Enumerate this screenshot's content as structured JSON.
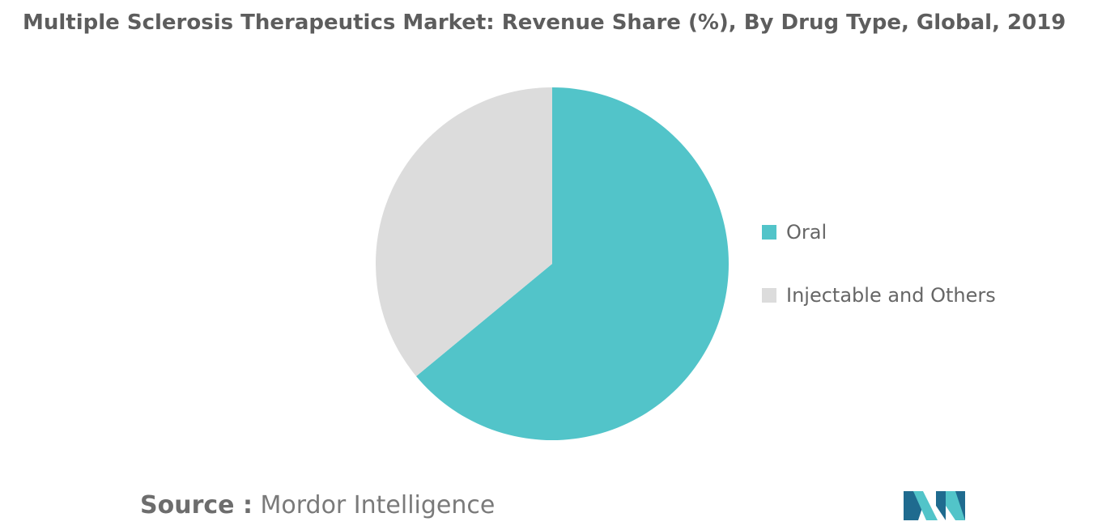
{
  "colors": {
    "oral": "#52c4c9",
    "injectable": "#dcdcdc",
    "title": "#5d5d5d",
    "logo_dark": "#1f6b8f",
    "logo_light": "#52c4c9"
  },
  "chart_data": {
    "type": "pie",
    "title": "Multiple Sclerosis Therapeutics Market: Revenue Share (%), By Drug Type, Global, 2019",
    "categories": [
      "Oral",
      "Injectable and Others"
    ],
    "values": [
      64,
      36
    ],
    "colors": [
      "#52c4c9",
      "#dcdcdc"
    ],
    "legend_placement": "right",
    "start_angle_deg": 0,
    "direction": "clockwise"
  },
  "legend": {
    "items": [
      {
        "label": "Oral",
        "color": "#52c4c9"
      },
      {
        "label": "Injectable and Others",
        "color": "#dcdcdc"
      }
    ]
  },
  "source": {
    "key": "Source :",
    "value": " Mordor Intelligence"
  },
  "logo": {
    "icon": "mordor-intelligence-logo-icon"
  }
}
